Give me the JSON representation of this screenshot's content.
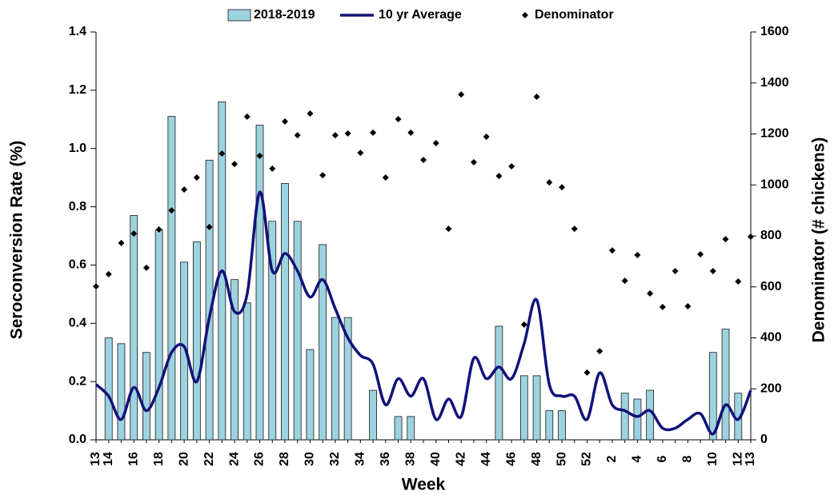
{
  "chart_data": {
    "type": "bar",
    "ylabel": "Seroconversion Rate (%)",
    "y2label": "Denominator (# chickens)",
    "xlabel": "Week",
    "categories": [
      "13",
      "14",
      null,
      "16",
      null,
      "18",
      null,
      "20",
      null,
      "22",
      null,
      "24",
      null,
      "26",
      null,
      "28",
      null,
      "30",
      null,
      "32",
      null,
      "34",
      null,
      "36",
      null,
      "38",
      null,
      "40",
      null,
      "42",
      null,
      "44",
      null,
      "46",
      null,
      "48",
      null,
      "50",
      null,
      "52",
      null,
      "2",
      null,
      "4",
      null,
      "6",
      null,
      "8",
      null,
      "10",
      null,
      "12",
      "13"
    ],
    "ylim": [
      0,
      1.4
    ],
    "yticks": [
      {
        "value": 0,
        "label": "0.0"
      },
      0.2,
      0.4,
      0.6,
      0.8,
      {
        "value": 1,
        "label": "1.0"
      },
      1.2,
      1.4
    ],
    "y2lim": [
      0,
      1600
    ],
    "y2ticks": [
      0,
      200,
      400,
      600,
      800,
      1000,
      1200,
      1400,
      1600
    ],
    "series": [
      {
        "name": "2018-2019",
        "type": "bar",
        "color": "#9dd2df",
        "values": [
          null,
          0.35,
          0.33,
          0.77,
          0.3,
          0.72,
          1.11,
          0.61,
          0.68,
          0.96,
          1.16,
          0.55,
          0.47,
          1.08,
          0.75,
          0.88,
          0.75,
          0.31,
          0.67,
          0.42,
          0.42,
          null,
          0.17,
          null,
          0.08,
          0.08,
          null,
          null,
          null,
          null,
          null,
          null,
          0.39,
          null,
          0.22,
          0.22,
          0.1,
          0.1,
          null,
          null,
          null,
          null,
          0.16,
          0.14,
          0.17,
          null,
          null,
          null,
          null,
          0.3,
          0.38,
          0.16,
          null
        ]
      },
      {
        "name": "10 yr Average",
        "type": "line",
        "color": "#12127a",
        "values": [
          0.19,
          0.15,
          0.07,
          0.18,
          0.1,
          0.18,
          0.3,
          0.32,
          0.2,
          0.42,
          0.58,
          0.44,
          0.5,
          0.85,
          0.58,
          0.64,
          0.58,
          0.49,
          0.55,
          0.45,
          0.35,
          0.29,
          0.26,
          0.12,
          0.21,
          0.15,
          0.21,
          0.07,
          0.14,
          0.08,
          0.28,
          0.21,
          0.25,
          0.21,
          0.33,
          0.48,
          0.19,
          0.15,
          0.15,
          0.07,
          0.23,
          0.12,
          0.1,
          0.08,
          0.1,
          0.04,
          0.04,
          0.07,
          0.09,
          0.02,
          0.12,
          0.07,
          0.17
        ]
      },
      {
        "name": "Denominator",
        "type": "scatter",
        "axis": "y2",
        "color": "#000000",
        "values": [
          602,
          650,
          772,
          809,
          675,
          825,
          900,
          982,
          1029,
          835,
          1123,
          1082,
          1268,
          1114,
          1064,
          1249,
          1195,
          1280,
          1038,
          1195,
          1202,
          1126,
          1205,
          1029,
          1258,
          1205,
          1098,
          1164,
          828,
          1355,
          1089,
          1189,
          1035,
          1073,
          452,
          1346,
          1010,
          991,
          828,
          264,
          348,
          743,
          624,
          725,
          574,
          521,
          662,
          524,
          728,
          662,
          787,
          621,
          797
        ]
      }
    ]
  }
}
